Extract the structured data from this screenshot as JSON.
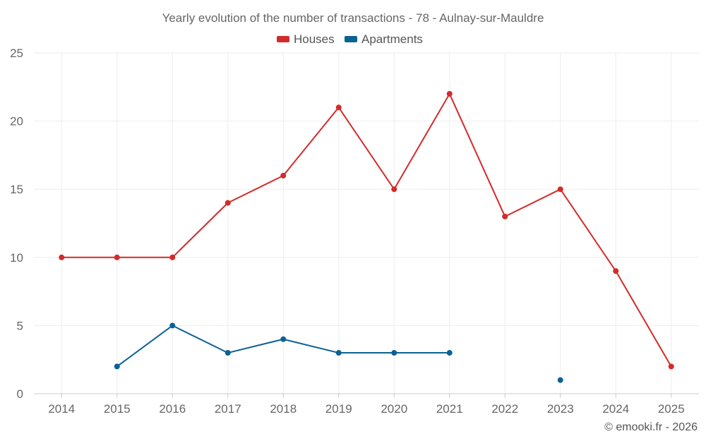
{
  "chart_data": {
    "type": "line",
    "title": "Yearly evolution of the number of transactions - 78 - Aulnay-sur-Mauldre",
    "x": [
      "2014",
      "2015",
      "2016",
      "2017",
      "2018",
      "2019",
      "2020",
      "2021",
      "2022",
      "2023",
      "2024",
      "2025"
    ],
    "series": [
      {
        "name": "Houses",
        "color": "#d42a2a",
        "values": [
          10,
          10,
          10,
          14,
          16,
          21,
          15,
          22,
          13,
          15,
          9,
          2
        ]
      },
      {
        "name": "Apartments",
        "color": "#0a6196",
        "values": [
          null,
          2,
          5,
          3,
          4,
          3,
          3,
          3,
          null,
          1,
          null,
          null
        ]
      }
    ],
    "ylim": [
      0,
      25
    ],
    "yticks": [
      0,
      5,
      10,
      15,
      20,
      25
    ],
    "grid": true,
    "legend_position": "top-center"
  },
  "credit": "© emooki.fr - 2026"
}
